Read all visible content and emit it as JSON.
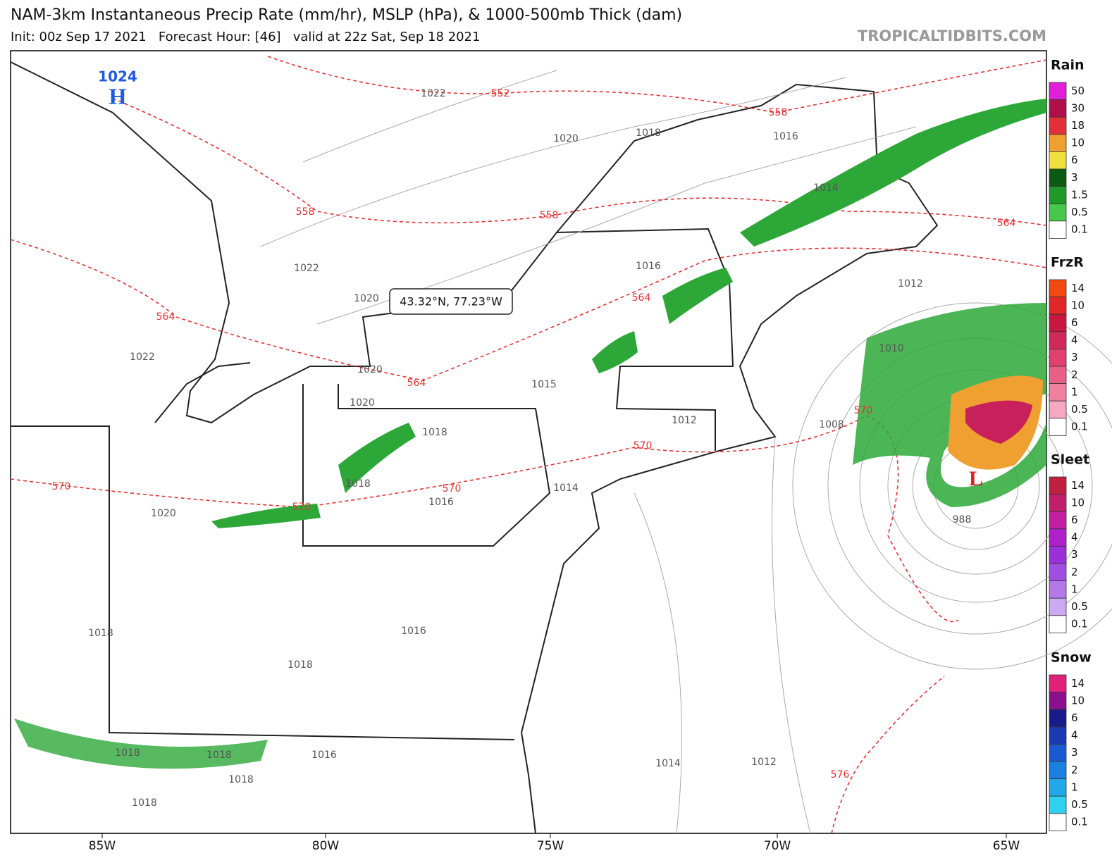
{
  "header": {
    "title": "NAM-3km Instantaneous Precip Rate (mm/hr), MSLP (hPa), & 1000-500mb Thick (dam)",
    "subtitle": "Init: 00z Sep 17 2021   Forecast Hour: [46]   valid at 22z Sat, Sep 18 2021",
    "site": "TROPICALTIDBITS.COM"
  },
  "map": {
    "tooltip": "43.32°N, 77.23°W",
    "highs": [
      {
        "value": 1024,
        "symbol": "H"
      }
    ],
    "lows": [
      {
        "symbol": "L"
      }
    ],
    "pressure_labels": [
      1022,
      1020,
      1018,
      1016,
      1022,
      1020,
      1022,
      1020,
      1020,
      1018,
      1016,
      1014,
      1012,
      1010,
      1015,
      1012,
      1008,
      1014,
      1016,
      1018,
      1020,
      1018,
      1016,
      1018,
      1016,
      1018,
      1018,
      1018,
      1018,
      1014,
      1012,
      988
    ],
    "thickness_labels": [
      552,
      558,
      558,
      558,
      564,
      564,
      564,
      564,
      570,
      570,
      570,
      570,
      570,
      576
    ],
    "x_labels": [
      "85W",
      "80W",
      "75W",
      "70W",
      "65W"
    ]
  },
  "legends": [
    {
      "title": "Rain",
      "labels": [
        50,
        30,
        18,
        10,
        6,
        3,
        1.5,
        0.5,
        0.1
      ],
      "colors": [
        "#e020d8",
        "#b0104a",
        "#e0303a",
        "#f0a030",
        "#f0e040",
        "#0a5a14",
        "#1f9a2a",
        "#46c84a",
        "#ffffff"
      ]
    },
    {
      "title": "FrzR",
      "labels": [
        14,
        10,
        6,
        4,
        3,
        2,
        1,
        0.5,
        0.1
      ],
      "colors": [
        "#f04a10",
        "#e02828",
        "#c81840",
        "#d02a5a",
        "#e0406e",
        "#e86088",
        "#f080a2",
        "#f6a8c0",
        "#ffffff"
      ]
    },
    {
      "title": "Sleet",
      "labels": [
        14,
        10,
        6,
        4,
        3,
        2,
        1,
        0.5,
        0.1
      ],
      "colors": [
        "#c02040",
        "#c0206a",
        "#c020a0",
        "#b020c8",
        "#9a30d8",
        "#a050e0",
        "#b478ea",
        "#ccaaf2",
        "#ffffff"
      ]
    },
    {
      "title": "Snow",
      "labels": [
        14,
        10,
        6,
        4,
        3,
        2,
        1,
        0.5,
        0.1
      ],
      "colors": [
        "#e0207a",
        "#8a1090",
        "#1a1a8a",
        "#1a3ab0",
        "#1a5ad0",
        "#1a80e0",
        "#20a8e8",
        "#30d0f0",
        "#ffffff"
      ]
    }
  ]
}
